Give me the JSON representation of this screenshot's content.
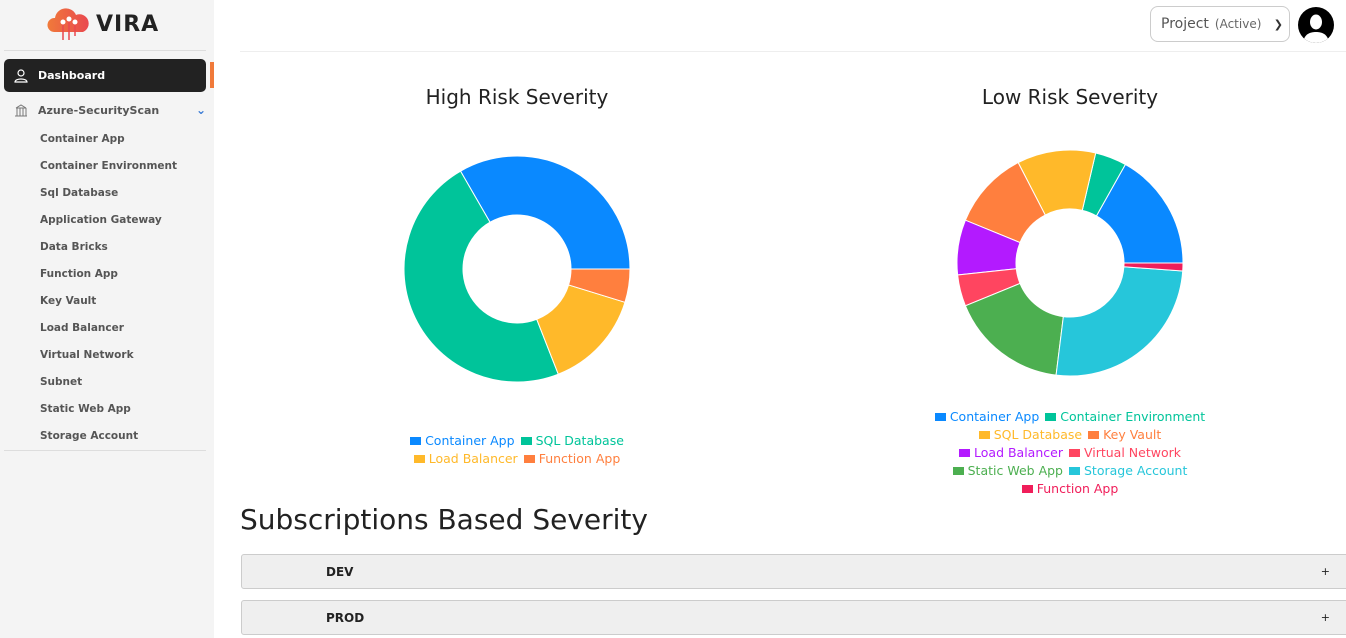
{
  "brand": {
    "name": "VIRA"
  },
  "sidebar": {
    "dashboard": "Dashboard",
    "group": "Azure-SecurityScan",
    "items": [
      "Container App",
      "Container Environment",
      "Sql Database",
      "Application Gateway",
      "Data Bricks",
      "Function App",
      "Key Vault",
      "Load Balancer",
      "Virtual Network",
      "Subnet",
      "Static Web App",
      "Storage Account"
    ]
  },
  "header": {
    "project_label": "Project",
    "project_status": "(Active)"
  },
  "chart_data": [
    {
      "type": "pie",
      "title": "High Risk Severity",
      "legend": "bottom",
      "categories": [
        "Container App",
        "SQL Database",
        "Load Balancer",
        "Function App"
      ],
      "values": [
        7,
        10,
        3,
        1
      ],
      "colors": [
        "#0a89ff",
        "#00c49a",
        "#ffb92a",
        "#ff7f3e"
      ]
    },
    {
      "type": "pie",
      "title": "Low Risk Severity",
      "legend": "bottom",
      "categories": [
        "Container App",
        "Container Environment",
        "SQL Database",
        "Key Vault",
        "Load Balancer",
        "Virtual Network",
        "Static Web App",
        "Storage Account",
        "Function App"
      ],
      "values": [
        15,
        4,
        10,
        10,
        7,
        4,
        15,
        23,
        1
      ],
      "colors": [
        "#0a89ff",
        "#00c49a",
        "#ffb92a",
        "#ff7f3e",
        "#b31aff",
        "#ff4560",
        "#4caf50",
        "#26c6da",
        "#f01e5a"
      ]
    }
  ],
  "subscriptions": {
    "title": "Subscriptions Based Severity",
    "items": [
      {
        "name": "DEV",
        "toggle": "+"
      },
      {
        "name": "PROD",
        "toggle": "+"
      }
    ]
  }
}
